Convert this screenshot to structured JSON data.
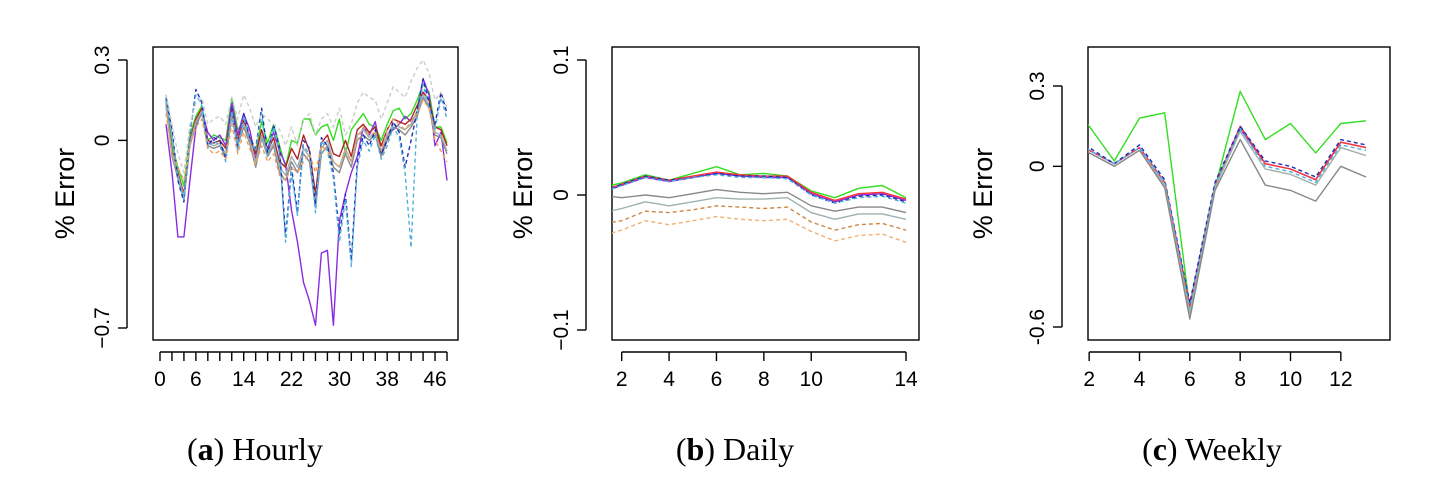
{
  "captions": [
    {
      "letter": "a",
      "text": " Hourly"
    },
    {
      "letter": "b",
      "text": " Daily"
    },
    {
      "letter": "c",
      "text": " Weekly"
    }
  ],
  "chart_data": [
    {
      "type": "line",
      "title": "",
      "xlabel": "",
      "ylabel": "% Error",
      "xlim": [
        0,
        48
      ],
      "ylim": [
        -0.7,
        0.3
      ],
      "yticks": [
        -0.7,
        0,
        0.3
      ],
      "ytick_labels": [
        "−0.7",
        "0",
        "0.3"
      ],
      "xticks": [
        0,
        6,
        14,
        22,
        30,
        38,
        46
      ],
      "xtick_labels": [
        "0",
        "6",
        "14",
        "22",
        "30",
        "38",
        "46"
      ],
      "minor_xticks": [
        0,
        2,
        4,
        6,
        8,
        10,
        12,
        14,
        16,
        18,
        20,
        22,
        24,
        26,
        28,
        30,
        32,
        34,
        36,
        38,
        40,
        42,
        44,
        46,
        48
      ],
      "x": [
        1,
        2,
        3,
        4,
        5,
        6,
        7,
        8,
        9,
        10,
        11,
        12,
        13,
        14,
        15,
        16,
        17,
        18,
        19,
        20,
        21,
        22,
        23,
        24,
        25,
        26,
        27,
        28,
        29,
        30,
        31,
        32,
        33,
        34,
        35,
        36,
        37,
        38,
        39,
        40,
        41,
        42,
        43,
        44,
        45,
        46,
        47,
        48
      ],
      "series": [
        {
          "color": "#33dd22",
          "dash": false,
          "values": [
            0.17,
            -0.02,
            -0.1,
            -0.17,
            0.02,
            0.09,
            0.13,
            0.0,
            0.02,
            0.01,
            0.0,
            0.16,
            0.04,
            0.07,
            0.0,
            -0.04,
            0.07,
            -0.01,
            0.06,
            -0.02,
            -0.1,
            0.0,
            -0.01,
            0.08,
            0.08,
            0.02,
            0.05,
            0.06,
            0.0,
            0.08,
            -0.05,
            0.04,
            0.07,
            0.1,
            0.06,
            0.05,
            0.0,
            0.06,
            0.11,
            0.12,
            0.08,
            0.1,
            0.15,
            0.21,
            0.18,
            0.05,
            0.05,
            -0.01
          ]
        },
        {
          "color": "#8a2be2",
          "dash": false,
          "values": [
            0.06,
            -0.12,
            -0.36,
            -0.36,
            -0.15,
            0.05,
            0.11,
            0.03,
            0.0,
            0.02,
            -0.02,
            0.14,
            0.02,
            0.1,
            0.04,
            -0.07,
            0.02,
            -0.03,
            0.03,
            -0.04,
            -0.09,
            -0.26,
            -0.38,
            -0.53,
            -0.6,
            -0.69,
            -0.42,
            -0.41,
            -0.69,
            -0.3,
            -0.2,
            -0.12,
            -0.06,
            0.05,
            0.02,
            0.07,
            -0.05,
            0.02,
            0.04,
            0.06,
            0.09,
            0.07,
            0.1,
            0.23,
            0.17,
            -0.02,
            0.03,
            -0.15
          ]
        },
        {
          "color": "#b22222",
          "dash": false,
          "values": [
            0.15,
            -0.04,
            -0.12,
            -0.2,
            0.0,
            0.08,
            0.12,
            0.0,
            -0.01,
            0.0,
            -0.03,
            0.11,
            0.0,
            0.08,
            0.01,
            -0.05,
            0.04,
            -0.04,
            0.01,
            -0.08,
            -0.1,
            -0.03,
            -0.07,
            0.02,
            -0.04,
            -0.2,
            -0.01,
            0.02,
            -0.05,
            -0.06,
            0.0,
            -0.06,
            0.04,
            0.06,
            0.03,
            0.05,
            -0.02,
            0.04,
            0.08,
            0.07,
            0.06,
            0.08,
            0.13,
            0.18,
            0.15,
            0.05,
            0.04,
            -0.02
          ]
        },
        {
          "color": "#888888",
          "dash": false,
          "values": [
            0.13,
            -0.06,
            -0.14,
            -0.22,
            -0.02,
            0.06,
            0.1,
            -0.02,
            -0.03,
            -0.02,
            -0.06,
            0.09,
            -0.02,
            0.05,
            -0.01,
            -0.1,
            0.01,
            -0.06,
            -0.02,
            -0.12,
            -0.15,
            -0.08,
            -0.12,
            -0.05,
            -0.08,
            -0.25,
            -0.05,
            -0.02,
            -0.1,
            -0.12,
            -0.05,
            -0.1,
            0.0,
            0.02,
            0.0,
            0.02,
            -0.06,
            0.0,
            0.05,
            0.04,
            0.02,
            0.05,
            0.09,
            0.16,
            0.12,
            0.02,
            0.01,
            -0.05
          ]
        },
        {
          "color": "#9fb0b0",
          "dash": false,
          "values": [
            0.14,
            -0.05,
            -0.13,
            -0.21,
            -0.01,
            0.07,
            0.11,
            -0.01,
            -0.02,
            -0.01,
            -0.05,
            0.1,
            -0.01,
            0.06,
            0.0,
            -0.08,
            0.02,
            -0.05,
            -0.01,
            -0.1,
            -0.13,
            -0.06,
            -0.1,
            -0.03,
            -0.06,
            -0.23,
            -0.03,
            0.0,
            -0.08,
            -0.1,
            -0.03,
            -0.08,
            0.02,
            0.04,
            0.01,
            0.03,
            -0.04,
            0.02,
            0.06,
            0.05,
            0.04,
            0.06,
            0.11,
            0.17,
            0.13,
            0.03,
            0.02,
            -0.04
          ]
        },
        {
          "color": "#1c2db8",
          "dash": true,
          "values": [
            0.16,
            0.04,
            -0.15,
            -0.23,
            0.02,
            0.19,
            0.14,
            -0.02,
            0.01,
            0.0,
            -0.07,
            0.12,
            -0.03,
            0.1,
            0.01,
            -0.03,
            0.12,
            -0.05,
            0.06,
            -0.03,
            -0.36,
            -0.1,
            -0.27,
            0.0,
            -0.03,
            -0.24,
            0.01,
            -0.02,
            -0.12,
            -0.35,
            -0.2,
            -0.45,
            -0.08,
            0.02,
            -0.02,
            0.04,
            -0.05,
            0.0,
            0.07,
            0.03,
            -0.1,
            0.0,
            0.11,
            0.23,
            0.14,
            0.06,
            0.18,
            0.1
          ]
        },
        {
          "color": "#4fb0d8",
          "dash": true,
          "values": [
            0.15,
            0.02,
            -0.14,
            -0.22,
            0.03,
            0.17,
            0.13,
            -0.03,
            0.0,
            -0.02,
            -0.08,
            0.11,
            -0.04,
            0.09,
            0.0,
            -0.04,
            0.1,
            -0.06,
            0.05,
            -0.05,
            -0.38,
            -0.12,
            -0.28,
            -0.02,
            -0.05,
            -0.27,
            0.0,
            -0.04,
            -0.14,
            -0.38,
            -0.22,
            -0.47,
            -0.1,
            0.0,
            -0.04,
            0.02,
            -0.07,
            -0.02,
            0.05,
            0.01,
            -0.12,
            -0.4,
            0.09,
            0.21,
            0.12,
            0.04,
            0.16,
            0.08
          ]
        },
        {
          "color": "#cccccc",
          "dash": true,
          "values": [
            0.17,
            0.06,
            -0.05,
            -0.12,
            0.06,
            0.14,
            0.16,
            0.06,
            0.08,
            0.09,
            0.06,
            0.16,
            0.08,
            0.17,
            0.12,
            0.05,
            0.1,
            0.08,
            0.06,
            0.04,
            -0.02,
            0.05,
            -0.02,
            0.08,
            0.1,
            0.02,
            0.08,
            0.1,
            0.05,
            0.12,
            0.02,
            0.06,
            0.14,
            0.18,
            0.16,
            0.15,
            0.08,
            0.14,
            0.2,
            0.18,
            0.16,
            0.22,
            0.27,
            0.3,
            0.25,
            0.15,
            0.18,
            0.12
          ]
        },
        {
          "color": "#e8a060",
          "dash": true,
          "values": [
            0.1,
            -0.05,
            -0.1,
            -0.15,
            -0.02,
            0.05,
            0.08,
            -0.03,
            -0.05,
            -0.04,
            -0.07,
            0.06,
            -0.05,
            0.03,
            -0.03,
            -0.09,
            -0.02,
            -0.08,
            -0.05,
            -0.13,
            -0.15,
            -0.1,
            -0.12,
            -0.08,
            -0.05,
            -0.12,
            -0.02,
            -0.04,
            -0.08,
            -0.1,
            -0.04,
            -0.08,
            0.0,
            0.05,
            0.02,
            0.03,
            -0.04,
            0.04,
            0.08,
            0.06,
            0.04,
            0.07,
            0.1,
            0.15,
            0.12,
            0.0,
            -0.04,
            -0.08
          ]
        }
      ]
    },
    {
      "type": "line",
      "title": "",
      "xlabel": "",
      "ylabel": "% Error",
      "xlim": [
        0.5,
        14.2
      ],
      "ylim": [
        -0.1,
        0.1
      ],
      "yticks": [
        -0.1,
        0,
        0.1
      ],
      "ytick_labels": [
        "−0.1",
        "0",
        "0.1"
      ],
      "xticks": [
        2,
        4,
        6,
        8,
        10,
        14
      ],
      "xtick_labels": [
        "2",
        "4",
        "6",
        "8",
        "10",
        "14"
      ],
      "x": [
        1,
        2,
        3,
        4,
        5,
        6,
        7,
        8,
        9,
        10,
        11,
        12,
        13,
        14
      ],
      "series": [
        {
          "color": "#33dd22",
          "dash": false,
          "values": [
            0.005,
            0.009,
            0.015,
            0.011,
            0.016,
            0.021,
            0.015,
            0.016,
            0.014,
            0.003,
            -0.002,
            0.005,
            0.007,
            -0.002
          ]
        },
        {
          "color": "#8a2be2",
          "dash": false,
          "values": [
            0.001,
            0.007,
            0.013,
            0.01,
            0.013,
            0.016,
            0.014,
            0.013,
            0.013,
            0.001,
            -0.005,
            0.0,
            0.001,
            -0.004
          ]
        },
        {
          "color": "#ff3333",
          "dash": false,
          "values": [
            0.002,
            0.008,
            0.014,
            0.011,
            0.014,
            0.017,
            0.015,
            0.014,
            0.014,
            0.002,
            -0.004,
            0.001,
            0.002,
            -0.003
          ]
        },
        {
          "color": "#1c2db8",
          "dash": true,
          "values": [
            0.001,
            0.008,
            0.014,
            0.011,
            0.013,
            0.016,
            0.014,
            0.014,
            0.013,
            0.0,
            -0.006,
            -0.001,
            0.0,
            -0.005
          ]
        },
        {
          "color": "#4fb0d8",
          "dash": true,
          "values": [
            0.001,
            0.007,
            0.013,
            0.01,
            0.013,
            0.015,
            0.013,
            0.013,
            0.012,
            0.0,
            -0.006,
            -0.002,
            -0.001,
            -0.006
          ]
        },
        {
          "color": "#888888",
          "dash": false,
          "values": [
            0.0,
            -0.002,
            0.0,
            -0.002,
            0.001,
            0.004,
            0.002,
            0.001,
            0.002,
            -0.008,
            -0.012,
            -0.009,
            -0.009,
            -0.013
          ]
        },
        {
          "color": "#9fb0b0",
          "dash": false,
          "values": [
            -0.014,
            -0.01,
            -0.005,
            -0.008,
            -0.005,
            -0.002,
            -0.003,
            -0.003,
            -0.002,
            -0.013,
            -0.018,
            -0.014,
            -0.014,
            -0.018
          ]
        },
        {
          "color": "#cc8844",
          "dash": true,
          "values": [
            -0.022,
            -0.019,
            -0.012,
            -0.013,
            -0.011,
            -0.008,
            -0.009,
            -0.01,
            -0.009,
            -0.02,
            -0.026,
            -0.022,
            -0.021,
            -0.026
          ]
        },
        {
          "color": "#f0b070",
          "dash": true,
          "values": [
            -0.031,
            -0.026,
            -0.019,
            -0.022,
            -0.019,
            -0.016,
            -0.018,
            -0.019,
            -0.018,
            -0.027,
            -0.034,
            -0.03,
            -0.029,
            -0.035
          ]
        }
      ]
    },
    {
      "type": "line",
      "title": "",
      "xlabel": "",
      "ylabel": "% Error",
      "xlim": [
        0.6,
        13.3
      ],
      "ylim": [
        -0.65,
        0.32
      ],
      "yticks": [
        -0.6,
        0,
        0.3
      ],
      "ytick_labels": [
        "-0.6",
        "0",
        "0.3"
      ],
      "xticks": [
        2,
        4,
        6,
        8,
        10,
        12
      ],
      "xtick_labels": [
        "2",
        "4",
        "6",
        "8",
        "10",
        "12"
      ],
      "x": [
        1,
        2,
        3,
        4,
        5,
        6,
        7,
        8,
        9,
        10,
        11,
        12,
        13
      ],
      "series": [
        {
          "color": "#33dd22",
          "dash": false,
          "values": [
            0.24,
            0.15,
            0.02,
            0.18,
            0.2,
            -0.53,
            -0.08,
            0.28,
            0.1,
            0.16,
            0.05,
            0.16,
            0.17
          ]
        },
        {
          "color": "#8a2be2",
          "dash": false,
          "values": [
            0.13,
            0.06,
            0.01,
            0.07,
            -0.06,
            -0.52,
            -0.07,
            0.14,
            0.01,
            -0.01,
            -0.05,
            0.09,
            0.07
          ]
        },
        {
          "color": "#ff3333",
          "dash": false,
          "values": [
            0.14,
            0.06,
            0.01,
            0.07,
            -0.06,
            -0.52,
            -0.07,
            0.15,
            0.01,
            -0.01,
            -0.05,
            0.09,
            0.07
          ]
        },
        {
          "color": "#1c2db8",
          "dash": true,
          "values": [
            0.15,
            0.07,
            0.01,
            0.08,
            -0.05,
            -0.51,
            -0.06,
            0.15,
            0.02,
            0.0,
            -0.04,
            0.1,
            0.08
          ]
        },
        {
          "color": "#4fb0d8",
          "dash": true,
          "values": [
            0.13,
            0.06,
            0.01,
            0.07,
            -0.06,
            -0.53,
            -0.07,
            0.14,
            0.0,
            -0.02,
            -0.06,
            0.08,
            0.06
          ]
        },
        {
          "color": "#9fb0b0",
          "dash": false,
          "values": [
            0.12,
            0.05,
            0.0,
            0.06,
            -0.07,
            -0.55,
            -0.08,
            0.13,
            -0.01,
            -0.03,
            -0.07,
            0.07,
            0.04
          ]
        },
        {
          "color": "#888888",
          "dash": false,
          "values": [
            0.12,
            0.05,
            0.0,
            0.06,
            -0.08,
            -0.57,
            -0.09,
            0.1,
            -0.07,
            -0.09,
            -0.13,
            0.0,
            -0.04
          ]
        }
      ]
    }
  ]
}
